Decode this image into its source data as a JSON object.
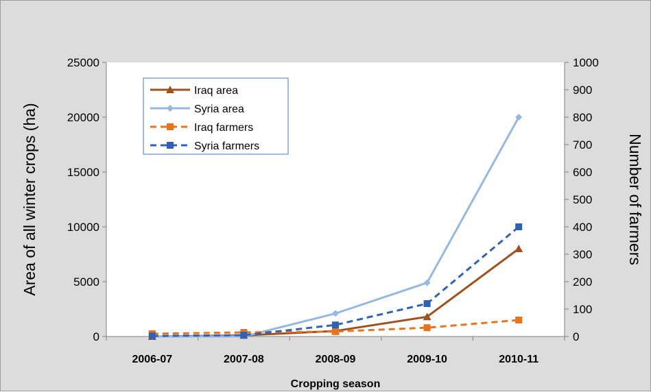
{
  "chart_data": {
    "type": "line",
    "title": "",
    "categories": [
      "2006-07",
      "2007-08",
      "2008-09",
      "2009-10",
      "2010-11"
    ],
    "xlabel": "Cropping season",
    "ylabel": "Area of all winter crops (ha)",
    "y2label": "Number of farmers",
    "ylim": [
      0,
      25000
    ],
    "y2lim": [
      0,
      1000
    ],
    "yticks": [
      "0",
      "5000",
      "10000",
      "15000",
      "20000",
      "25000"
    ],
    "y2ticks": [
      "0",
      "100",
      "200",
      "300",
      "400",
      "500",
      "600",
      "700",
      "800",
      "900",
      "1000"
    ],
    "grid": false,
    "legend_position": "top-left",
    "series": [
      {
        "name": "Iraq area",
        "axis": "left",
        "marker": "triangle",
        "dash": "solid",
        "color": "#a0501e",
        "values": [
          0,
          100,
          500,
          1800,
          8000
        ]
      },
      {
        "name": "Syria area",
        "axis": "left",
        "marker": "diamond",
        "dash": "solid",
        "color": "#95b8e3",
        "values": [
          0,
          0,
          2100,
          4900,
          20000
        ]
      },
      {
        "name": "Iraq farmers",
        "axis": "right",
        "marker": "square",
        "dash": "dashed",
        "color": "#e8731c",
        "values": [
          10,
          15,
          18,
          32,
          60
        ]
      },
      {
        "name": "Syria farmers",
        "axis": "right",
        "marker": "square",
        "dash": "dashed",
        "color": "#2f62b5",
        "values": [
          2,
          5,
          42,
          120,
          400
        ]
      }
    ]
  }
}
